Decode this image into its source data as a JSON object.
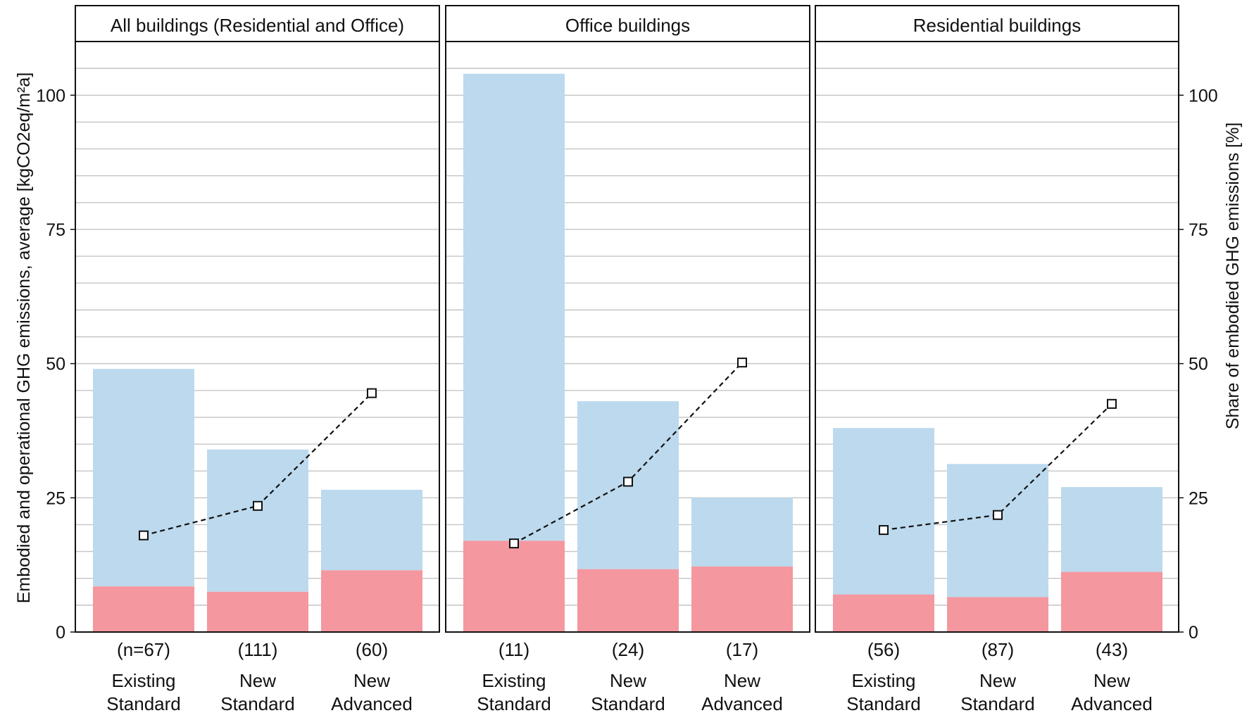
{
  "chart_data": {
    "type": "bar",
    "stacked": true,
    "ylabel": "Embodied and operational GHG emissions, average [kgCO2eq/m²a]",
    "y2label": "Share of embodied GHG emissions [%]",
    "ylim": [
      0,
      110
    ],
    "y2lim": [
      0,
      110
    ],
    "yticks": [
      0,
      25,
      50,
      75,
      100
    ],
    "y2ticks": [
      0,
      25,
      50,
      75,
      100
    ],
    "grid": true,
    "colors": {
      "embodied": "#f4979f",
      "operational": "#bcd9ee",
      "line": "#111111"
    },
    "panels": [
      {
        "title": "All buildings (Residential and Office)",
        "categories": [
          {
            "count": "(n=67)",
            "line1": "Existing",
            "line2": "Standard"
          },
          {
            "count": "(111)",
            "line1": "New",
            "line2": "Standard"
          },
          {
            "count": "(60)",
            "line1": "New",
            "line2": "Advanced"
          }
        ],
        "embodied": [
          8.5,
          7.5,
          11.5
        ],
        "total": [
          49,
          34,
          26.5
        ],
        "share": [
          18,
          23.5,
          44.5
        ]
      },
      {
        "title": "Office buildings",
        "categories": [
          {
            "count": "(11)",
            "line1": "Existing",
            "line2": "Standard"
          },
          {
            "count": "(24)",
            "line1": "New",
            "line2": "Standard"
          },
          {
            "count": "(17)",
            "line1": "New",
            "line2": "Advanced"
          }
        ],
        "embodied": [
          17,
          11.7,
          12.2
        ],
        "total": [
          104,
          43,
          25
        ],
        "share": [
          16.5,
          28,
          50.2
        ]
      },
      {
        "title": "Residential buildings",
        "categories": [
          {
            "count": "(56)",
            "line1": "Existing",
            "line2": "Standard"
          },
          {
            "count": "(87)",
            "line1": "New",
            "line2": "Standard"
          },
          {
            "count": "(43)",
            "line1": "New",
            "line2": "Advanced"
          }
        ],
        "embodied": [
          7,
          6.5,
          11.2
        ],
        "total": [
          38,
          31.3,
          27
        ],
        "share": [
          19,
          21.8,
          42.5
        ]
      }
    ]
  }
}
